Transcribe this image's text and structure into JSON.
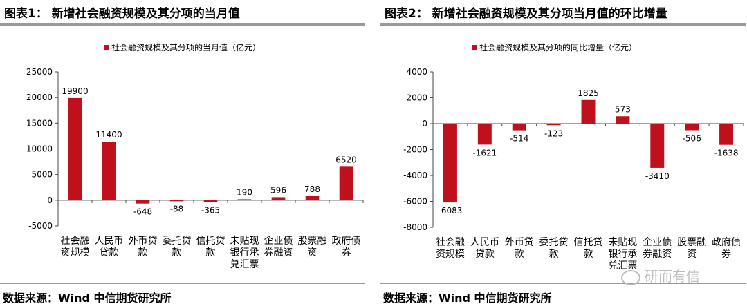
{
  "colors": {
    "bar": "#c0101b",
    "axis": "#444444",
    "rule": "#9a9a9a"
  },
  "left": {
    "title": "图表1： 新增社会融资规模及其分项的当月值",
    "source": "数据来源：Wind 中信期货研究所"
  },
  "right": {
    "title": "图表2： 新增社会融资规模及其分项当月值的环比增量",
    "source": "数据来源：Wind 中信期货研究所"
  },
  "watermark": "研而有信",
  "chart_data": [
    {
      "type": "bar",
      "title": "图表1： 新增社会融资规模及其分项的当月值",
      "legend": "社会融资规模及其分项的当月值（亿元）",
      "categories": [
        [
          "社会融",
          "资规模"
        ],
        [
          "人民币",
          "贷款"
        ],
        [
          "外币贷",
          "款"
        ],
        [
          "委托贷",
          "款"
        ],
        [
          "信托贷",
          "款"
        ],
        [
          "未贴现",
          "银行承",
          "兑汇票"
        ],
        [
          "企业债",
          "券融资"
        ],
        [
          "股票融",
          "资"
        ],
        [
          "政府债",
          "券"
        ]
      ],
      "values": [
        19900,
        11400,
        -648,
        -88,
        -365,
        190,
        596,
        788,
        6520
      ],
      "ylim": [
        -5000,
        25000
      ],
      "yticks": [
        -5000,
        0,
        5000,
        10000,
        15000,
        20000,
        25000
      ],
      "xlabel": "",
      "ylabel": ""
    },
    {
      "type": "bar",
      "title": "图表2： 新增社会融资规模及其分项当月值的环比增量",
      "legend": "社会融资规模及其分项的同比增量（亿元）",
      "categories": [
        [
          "社会融",
          "资规模"
        ],
        [
          "人民币",
          "贷款"
        ],
        [
          "外币贷",
          "款"
        ],
        [
          "委托贷",
          "款"
        ],
        [
          "信托贷",
          "款"
        ],
        [
          "未贴现",
          "银行承",
          "兑汇票"
        ],
        [
          "企业债",
          "券融资"
        ],
        [
          "股票融",
          "资"
        ],
        [
          "政府债",
          "券"
        ]
      ],
      "values": [
        -6083,
        -1621,
        -514,
        -123,
        1825,
        573,
        -3410,
        -506,
        -1638
      ],
      "ylim": [
        -8000,
        4000
      ],
      "yticks": [
        -8000,
        -6000,
        -4000,
        -2000,
        0,
        2000,
        4000
      ],
      "xlabel": "",
      "ylabel": ""
    }
  ]
}
